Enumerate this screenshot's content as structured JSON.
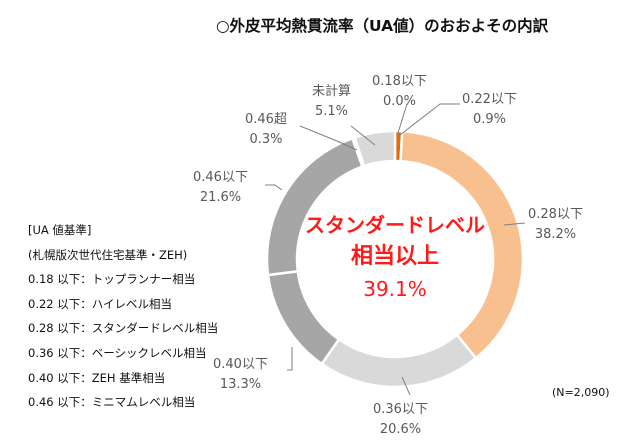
{
  "title": "○外皮平均熱貫流率（UA値）のおおよその内訳",
  "chart_data": {
    "type": "pie",
    "variant": "donut",
    "start": "top",
    "direction": "clockwise",
    "slices": [
      {
        "name": "0.18以下",
        "value": 0.0,
        "label": "0.0%",
        "color": "#c55a11"
      },
      {
        "name": "0.22以下",
        "value": 0.9,
        "label": "0.9%",
        "color": "#e36c0a"
      },
      {
        "name": "0.28以下",
        "value": 38.2,
        "label": "38.2%",
        "color": "#f8c08f"
      },
      {
        "name": "0.36以下",
        "value": 20.6,
        "label": "20.6%",
        "color": "#d9d9d9"
      },
      {
        "name": "0.40以下",
        "value": 13.3,
        "label": "13.3%",
        "color": "#a6a6a6"
      },
      {
        "name": "0.46以下",
        "value": 21.6,
        "label": "21.6%",
        "color": "#a6a6a6"
      },
      {
        "name": "0.46超",
        "value": 0.3,
        "label": "0.3%",
        "color": "#7f7f7f"
      },
      {
        "name": "未計算",
        "value": 5.1,
        "label": "5.1%",
        "color": "#d9d9d9"
      }
    ],
    "center_text": [
      "スタンダードレベル",
      "相当以上",
      "39.1%"
    ],
    "note": "(N=2,090)"
  },
  "legend": {
    "title": "[UA 値基準]",
    "subtitle": "(札幌版次世代住宅基準・ZEH)",
    "items": [
      "0.18 以下：トップランナー相当",
      "0.22 以下：ハイレベル相当",
      "0.28 以下：スタンダードレベル相当",
      "0.36 以下：ベーシックレベル相当",
      "0.40 以下：ZEH 基準相当",
      "0.46 以下：ミニマムレベル相当"
    ]
  }
}
